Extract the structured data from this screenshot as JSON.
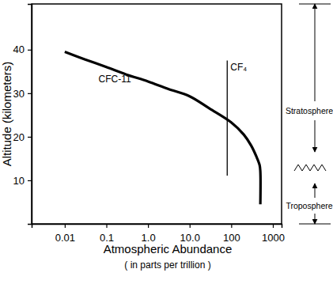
{
  "chart_data": {
    "type": "line",
    "xlabel": [
      "Atmospheric Abundance",
      "( in parts per trillion )"
    ],
    "ylabel": "Altitude (kilometers)",
    "log": "x",
    "grid": false,
    "xlim": [
      0.0016,
      1620
    ],
    "xticks": [
      0.01,
      0.1,
      {
        "value": 1,
        "label": "1.0"
      },
      {
        "value": 10,
        "label": "10.0"
      },
      100,
      1000
    ],
    "ylim": [
      0,
      50.5
    ],
    "yticks": [
      10,
      20,
      30,
      40
    ],
    "series": [
      {
        "name": "CFC-11",
        "color": "#000000",
        "line_style": "solid",
        "x": [
          0.01,
          0.03,
          0.1,
          0.3,
          1,
          3,
          10,
          30,
          100,
          200,
          300,
          400,
          480,
          500,
          500
        ],
        "values": [
          39.5,
          37.8,
          36,
          34.3,
          32.7,
          31,
          29.3,
          26.5,
          23.3,
          20.5,
          18,
          15.5,
          13.5,
          12,
          4.5
        ]
      },
      {
        "name": "CF₄",
        "color": "#000000",
        "line_style": "solid",
        "x": [
          80,
          80
        ],
        "values": [
          37.5,
          11.1
        ]
      }
    ],
    "annotations": [
      "Stratosphere",
      "Troposphere"
    ]
  }
}
